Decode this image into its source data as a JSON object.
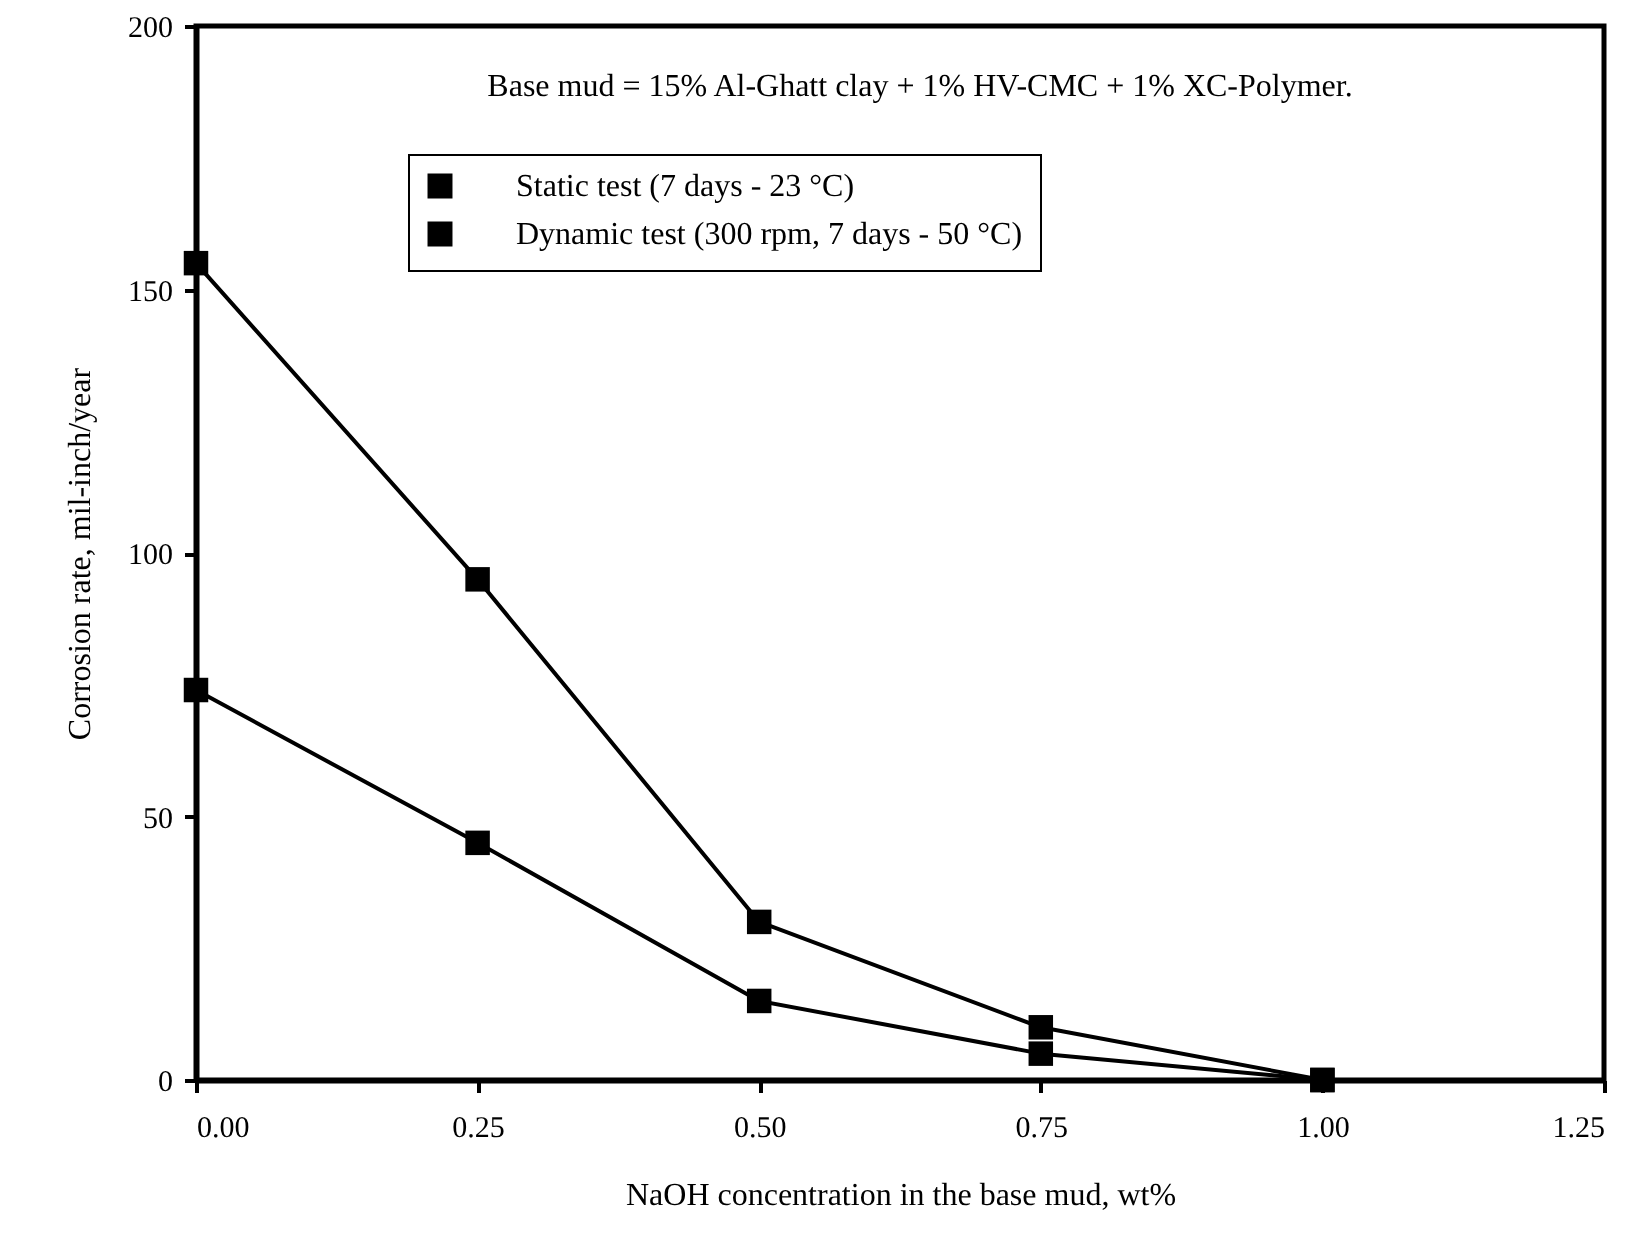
{
  "chart_data": {
    "type": "line",
    "xlabel": "NaOH concentration in the base mud, wt%",
    "ylabel": "Corrosion rate,  mil-inch/year",
    "annotations": [
      "Base mud = 15% Al-Ghatt clay + 1% HV-CMC + 1% XC-Polymer."
    ],
    "x": [
      0,
      0.25,
      0.5,
      0.75,
      1.0
    ],
    "series": [
      {
        "name": "Static test (7 days - 23 °C)",
        "color": "#000000",
        "values": [
          74,
          45,
          15,
          5,
          0
        ]
      },
      {
        "name": "Dynamic test (300 rpm, 7 days - 50 °C)",
        "color": "#000000",
        "values": [
          155,
          95,
          30,
          10,
          0
        ]
      }
    ],
    "xlim": [
      0,
      1.25
    ],
    "xticks": [
      {
        "value": 0,
        "label": "0.00"
      },
      0.25,
      {
        "value": 0.5,
        "label": "0.50"
      },
      0.75,
      {
        "value": 1,
        "label": "1.00"
      },
      1.25
    ],
    "ylim": [
      0,
      200
    ],
    "yticks": [
      0,
      50,
      100,
      150,
      200
    ],
    "marker": "square",
    "line_style": "solid",
    "legend": "top",
    "grid": false
  }
}
